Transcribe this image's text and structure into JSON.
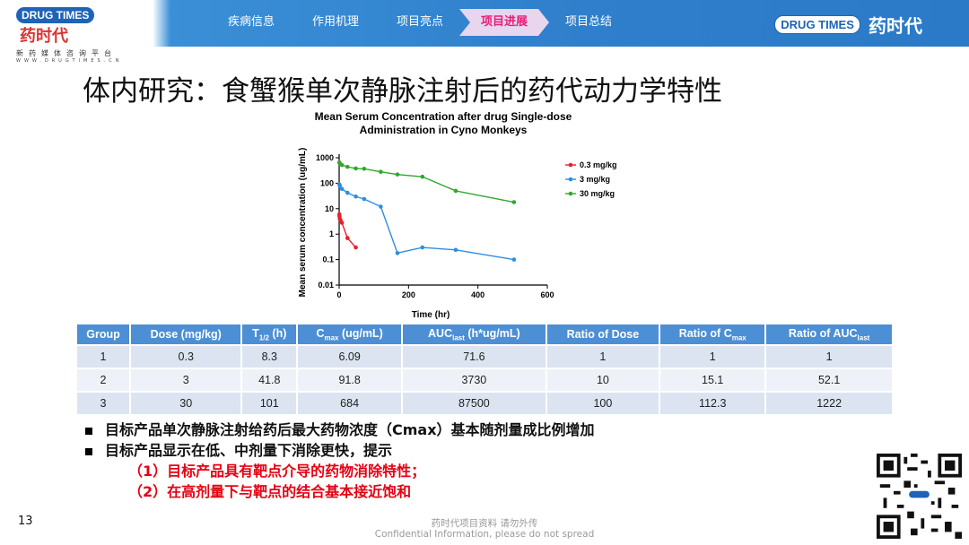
{
  "header": {
    "logo_left_en": "DRUG TIMES",
    "logo_left_cn": "药时代",
    "logo_left_sub": "新药媒体咨询平台",
    "logo_left_url": "WWW.DRUGTIMES.CN",
    "nav": [
      "疾病信息",
      "作用机理",
      "项目亮点",
      "项目进展",
      "项目总结"
    ],
    "active_nav": "项目进展",
    "logo_right_en": "DRUG TIMES",
    "logo_right_cn": "药时代"
  },
  "title": "体内研究：食蟹猴单次静脉注射后的药代动力学特性",
  "chart_data": {
    "type": "line",
    "title_line1": "Mean Serum Concentration after drug Single-dose",
    "title_line2": "Administration in Cyno Monkeys",
    "xlabel": "Time (hr)",
    "ylabel": "Mean serum concentration (ug/mL)",
    "xlim": [
      0,
      600
    ],
    "ylim": [
      0.01,
      1000
    ],
    "yscale": "log",
    "xticks": [
      "0",
      "200",
      "400",
      "600"
    ],
    "yticks": [
      "0.01",
      "0.1",
      "1",
      "10",
      "100",
      "1000"
    ],
    "legend_position": "right",
    "series": [
      {
        "name": "0.3 mg/kg",
        "color": "#e8202a",
        "x": [
          0.5,
          1,
          2,
          4,
          8,
          24,
          48
        ],
        "y": [
          6.0,
          5.0,
          4.0,
          3.5,
          2.8,
          0.7,
          0.3
        ]
      },
      {
        "name": "3 mg/kg",
        "color": "#2e8de0",
        "x": [
          0.5,
          2,
          8,
          24,
          48,
          72,
          120,
          168,
          240,
          336,
          504
        ],
        "y": [
          90,
          80,
          60,
          42,
          30,
          24,
          12,
          0.18,
          0.3,
          0.24,
          0.1
        ]
      },
      {
        "name": "30 mg/kg",
        "color": "#2ea82e",
        "x": [
          0.5,
          2,
          8,
          24,
          48,
          72,
          120,
          168,
          240,
          336,
          504
        ],
        "y": [
          650,
          600,
          520,
          440,
          380,
          370,
          280,
          220,
          180,
          50,
          18
        ]
      }
    ]
  },
  "table": {
    "headers": [
      {
        "main": "Group",
        "sub": ""
      },
      {
        "main": "Dose (mg/kg)",
        "sub": ""
      },
      {
        "main": "T",
        "sub": "1/2",
        "tail": " (h)"
      },
      {
        "main": "C",
        "sub": "max",
        "tail": " (ug/mL)"
      },
      {
        "main": "AUC",
        "sub": "last",
        "tail": " (h*ug/mL)"
      },
      {
        "main": "Ratio of Dose",
        "sub": ""
      },
      {
        "main": "Ratio of C",
        "sub": "max",
        "tail": ""
      },
      {
        "main": "Ratio of AUC",
        "sub": "last",
        "tail": ""
      }
    ],
    "rows": [
      [
        "1",
        "0.3",
        "8.3",
        "6.09",
        "71.6",
        "1",
        "1",
        "1"
      ],
      [
        "2",
        "3",
        "41.8",
        "91.8",
        "3730",
        "10",
        "15.1",
        "52.1"
      ],
      [
        "3",
        "30",
        "101",
        "684",
        "87500",
        "100",
        "112.3",
        "1222"
      ]
    ]
  },
  "bullets": [
    "目标产品单次静脉注射给药后最大药物浓度（Cmax）基本随剂量成比例增加",
    "目标产品显示在低、中剂量下消除更快，提示"
  ],
  "sub_points": [
    "（1）目标产品具有靶点介导的药物消除特性；",
    "（2）在高剂量下与靶点的结合基本接近饱和"
  ],
  "footer": {
    "page_number": "13",
    "confidential_cn": "药时代项目资料 请勿外传",
    "confidential_en": "Confidential Information, please do not spread"
  }
}
